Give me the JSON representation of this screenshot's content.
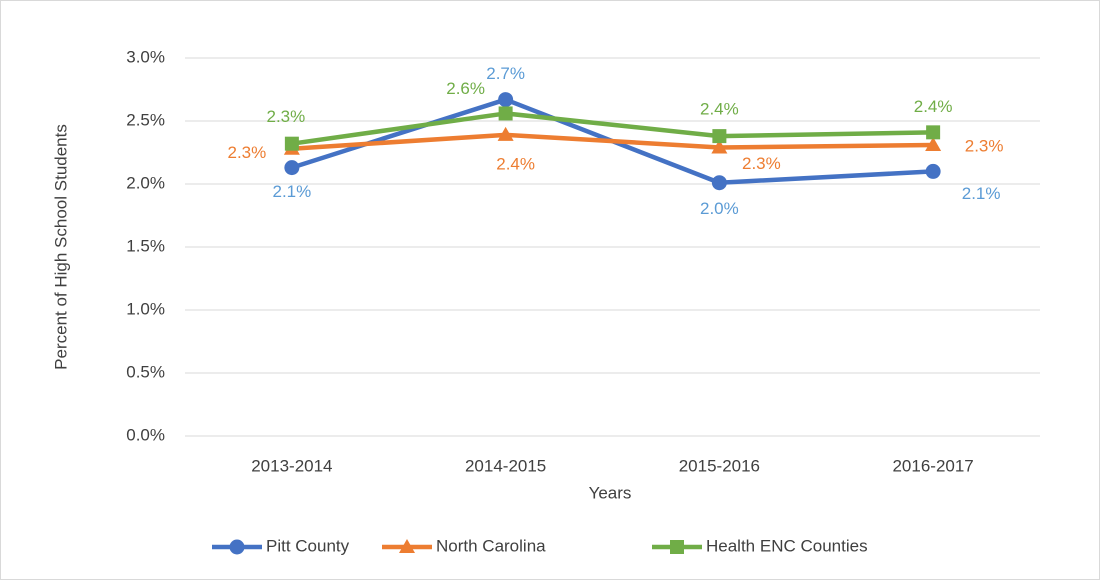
{
  "chart_data": {
    "type": "line",
    "categories": [
      "2013-2014",
      "2014-2015",
      "2015-2016",
      "2016-2017"
    ],
    "x_label": "Years",
    "y_label": "Percent of High School Students",
    "ylim": [
      0,
      3
    ],
    "yticks": [
      {
        "value": 0,
        "label": "0.0%"
      },
      {
        "value": 0.5,
        "label": "0.5%"
      },
      {
        "value": 1,
        "label": "1.0%"
      },
      {
        "value": 1.5,
        "label": "1.5%"
      },
      {
        "value": 2,
        "label": "2.0%"
      },
      {
        "value": 2.5,
        "label": "2.5%"
      },
      {
        "value": 3,
        "label": "3.0%"
      }
    ],
    "grid": true,
    "legend": "bottom",
    "series": [
      {
        "name": "Pitt County",
        "color": "#4472c4",
        "label_color": "#5b9bd5",
        "marker": "circle",
        "values": [
          2.13,
          2.67,
          2.01,
          2.1
        ],
        "value_labels": [
          "2.1%",
          "2.7%",
          "2.0%",
          "2.1%"
        ]
      },
      {
        "name": "North Carolina",
        "color": "#ed7d31",
        "label_color": "#ed7d31",
        "marker": "triangle",
        "values": [
          2.28,
          2.39,
          2.29,
          2.31
        ],
        "value_labels": [
          "2.3%",
          "2.4%",
          "2.3%",
          "2.3%"
        ]
      },
      {
        "name": "Health ENC Counties",
        "color": "#70ad47",
        "label_color": "#70ad47",
        "marker": "square",
        "values": [
          2.32,
          2.56,
          2.38,
          2.41
        ],
        "value_labels": [
          "2.3%",
          "2.6%",
          "2.4%",
          "2.4%"
        ]
      }
    ]
  }
}
